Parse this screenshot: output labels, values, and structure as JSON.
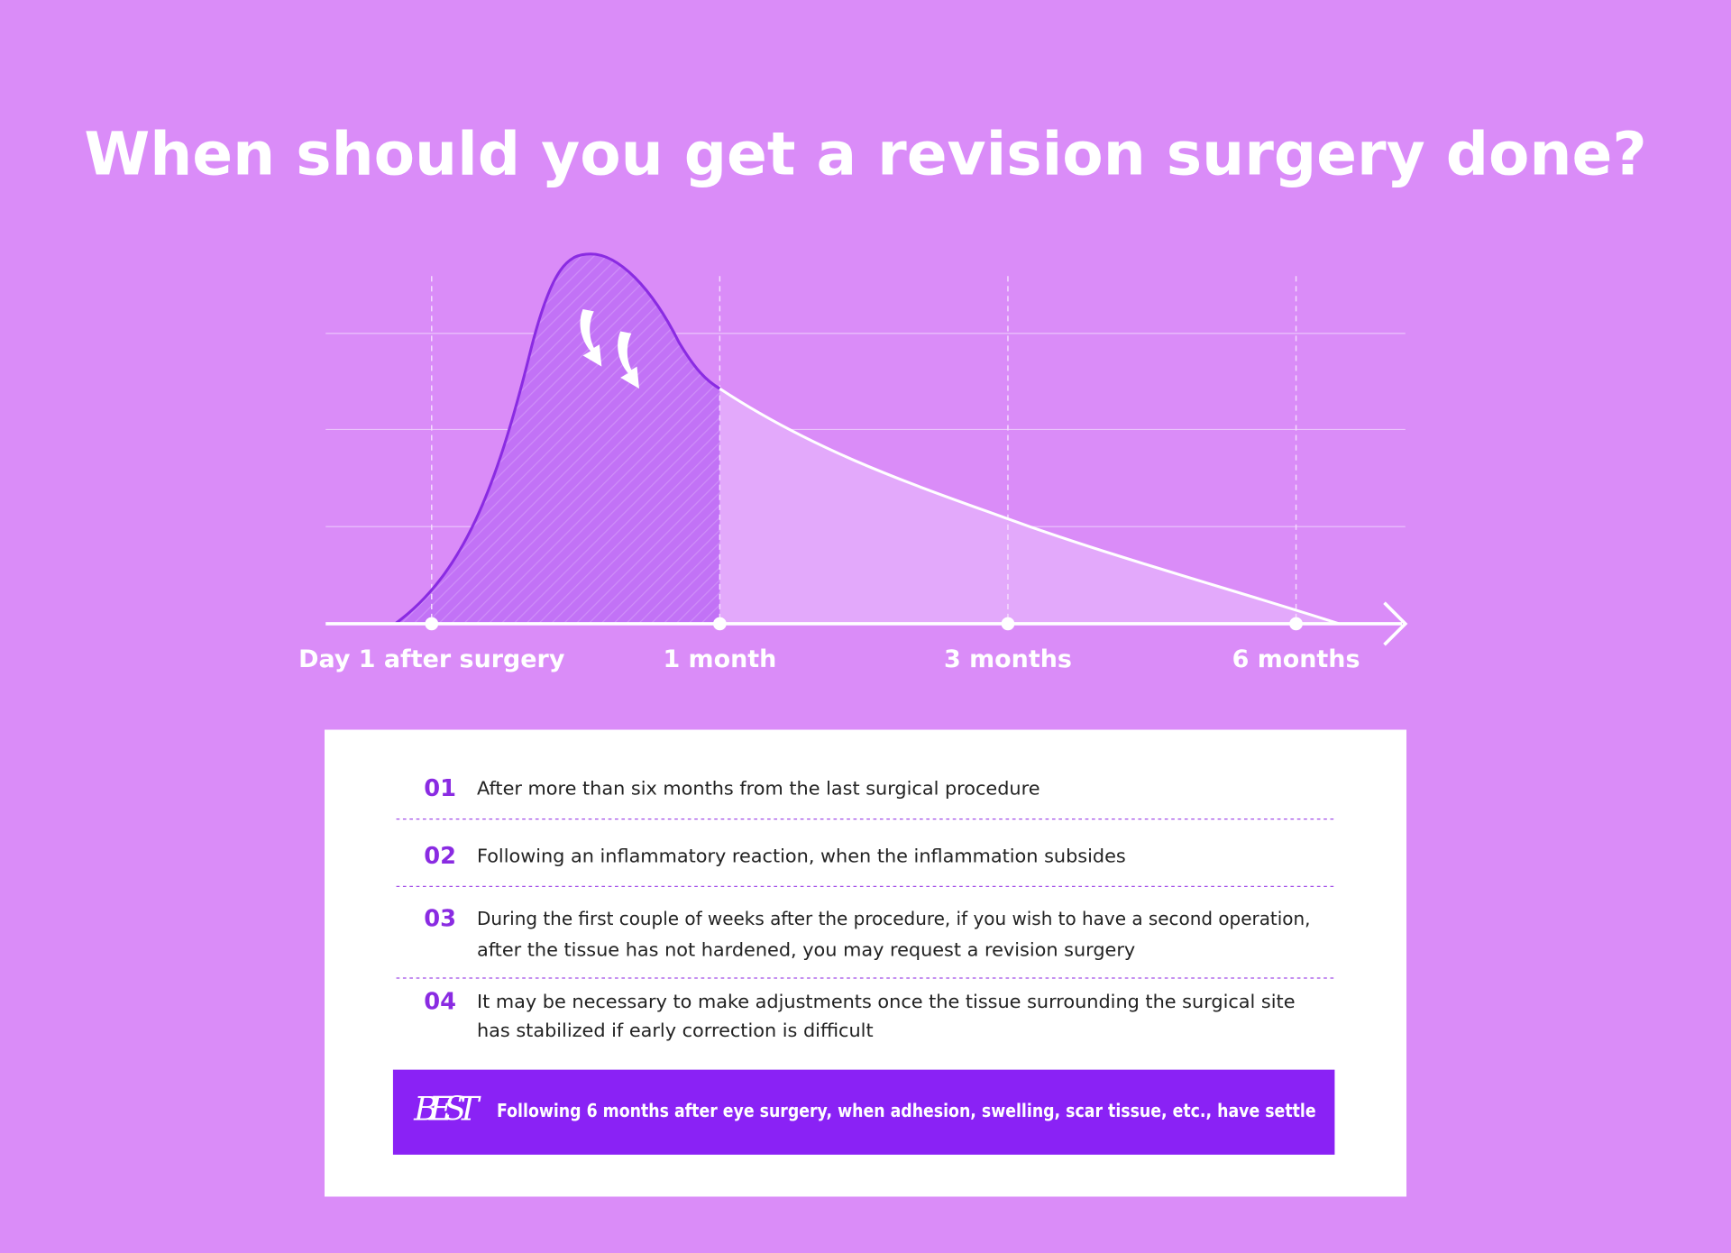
{
  "title": "When should you get a revision surgery done?",
  "timeline": {
    "labels": [
      "Day 1 after surgery",
      "1 month",
      "3 months",
      "6 months"
    ]
  },
  "list": {
    "items": [
      {
        "number": "01",
        "lines": [
          "After more than six months from the last surgical procedure"
        ]
      },
      {
        "number": "02",
        "lines": [
          "Following an inflammatory reaction, when the inflammation subsides"
        ]
      },
      {
        "number": "03",
        "lines": [
          "During the first couple of weeks after the procedure, if you wish to have a second operation,",
          "after the tissue has not hardened, you may request a revision surgery"
        ]
      },
      {
        "number": "04",
        "lines": [
          "It may be necessary to make adjustments once the tissue surrounding the surgical site",
          "has stabilized if early correction is difficult"
        ]
      }
    ]
  },
  "best": {
    "tag": "BEST",
    "text": "Following 6 months after eye surgery, when adhesion, swelling, scar tissue, etc., have settle"
  }
}
